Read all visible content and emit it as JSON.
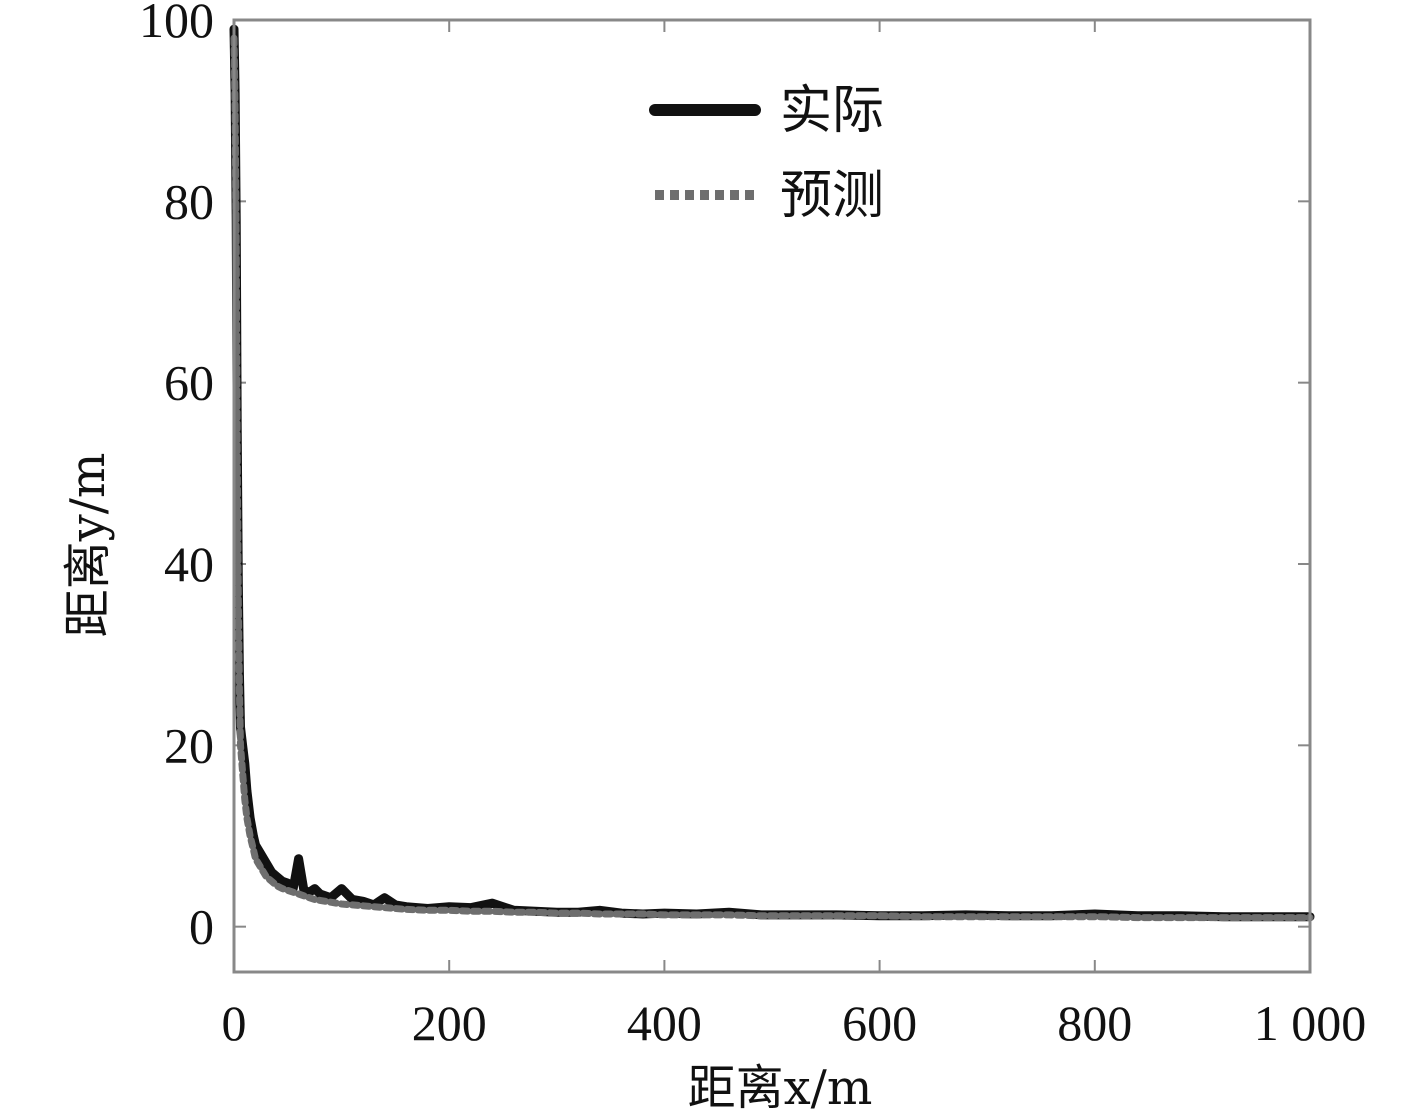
{
  "chart_data": {
    "type": "line",
    "xlabel": "距离x/m",
    "ylabel": "距离y/m",
    "xlim": [
      0,
      1000
    ],
    "ylim": [
      -5,
      100
    ],
    "xticks": [
      0,
      200,
      400,
      600,
      800,
      1000
    ],
    "xtick_labels": [
      "0",
      "200",
      "400",
      "600",
      "800",
      "1 000"
    ],
    "yticks": [
      0,
      20,
      40,
      60,
      80,
      100
    ],
    "ytick_labels": [
      "0",
      "20",
      "40",
      "60",
      "80",
      "100"
    ],
    "grid": false,
    "legend_position": "top-center",
    "x": [
      0,
      1,
      2,
      3,
      4,
      5,
      6,
      8,
      10,
      12,
      15,
      18,
      20,
      25,
      30,
      35,
      40,
      45,
      50,
      55,
      60,
      65,
      70,
      75,
      80,
      90,
      100,
      110,
      120,
      130,
      140,
      150,
      160,
      180,
      200,
      220,
      240,
      260,
      280,
      300,
      320,
      340,
      360,
      380,
      400,
      430,
      460,
      490,
      520,
      560,
      600,
      640,
      680,
      720,
      760,
      800,
      840,
      880,
      920,
      960,
      1000
    ],
    "series": [
      {
        "name": "实际",
        "color": "#111111",
        "style": "solid",
        "values": [
          99,
          92,
          78,
          55,
          38,
          28,
          22,
          20,
          18,
          15,
          12,
          10,
          9,
          8,
          7,
          6,
          5.5,
          5,
          4.8,
          4.2,
          7.5,
          4,
          3.8,
          4.2,
          3.6,
          3.2,
          4.2,
          3,
          2.8,
          2.4,
          3.2,
          2.4,
          2.2,
          2,
          2.2,
          2.1,
          2.6,
          1.8,
          1.7,
          1.6,
          1.6,
          1.8,
          1.5,
          1.4,
          1.5,
          1.4,
          1.6,
          1.3,
          1.3,
          1.3,
          1.2,
          1.2,
          1.3,
          1.2,
          1.2,
          1.4,
          1.2,
          1.2,
          1.1,
          1.1,
          1.1
        ]
      },
      {
        "name": "预测",
        "color": "#6e6e6e",
        "style": "dotted",
        "values": [
          98,
          90,
          75,
          52,
          36,
          26,
          20,
          17,
          14,
          12,
          10,
          8.5,
          7.5,
          6.5,
          5.5,
          5,
          4.5,
          4.2,
          4,
          3.8,
          3.6,
          3.4,
          3.2,
          3,
          2.9,
          2.7,
          2.5,
          2.4,
          2.3,
          2.2,
          2.1,
          2,
          1.9,
          1.8,
          1.8,
          1.7,
          1.7,
          1.6,
          1.6,
          1.5,
          1.5,
          1.4,
          1.4,
          1.4,
          1.3,
          1.3,
          1.3,
          1.2,
          1.2,
          1.2,
          1.2,
          1.1,
          1.1,
          1.1,
          1.1,
          1.1,
          1.0,
          1.0,
          1.0,
          1.0,
          1.0
        ]
      }
    ]
  }
}
